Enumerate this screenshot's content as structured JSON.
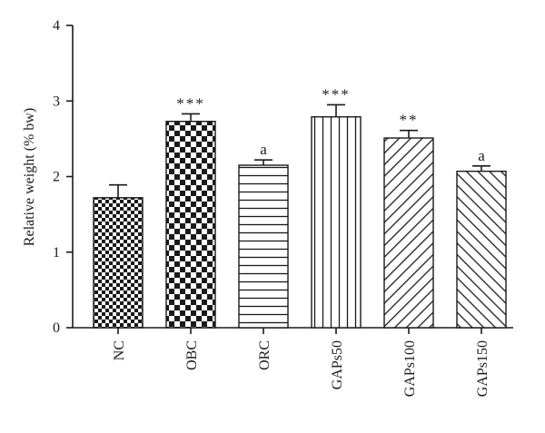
{
  "chart_data": {
    "type": "bar",
    "title": "",
    "xlabel": "",
    "ylabel": "Relative weight (% bw)",
    "ylim": [
      0,
      4
    ],
    "yticks": [
      "0",
      "1",
      "2",
      "3",
      "4"
    ],
    "categories": [
      "NC",
      "OBC",
      "ORC",
      "GAPs50",
      "GAPs100",
      "GAPs150"
    ],
    "values": [
      1.72,
      2.73,
      2.15,
      2.79,
      2.51,
      2.07
    ],
    "errors": [
      0.17,
      0.1,
      0.07,
      0.16,
      0.1,
      0.07
    ],
    "significance": [
      "",
      "***",
      "a",
      "***",
      "**",
      "a"
    ],
    "patterns": [
      "fine-checker",
      "coarse-checker",
      "horizontal-lines",
      "vertical-lines",
      "diagonal-lines",
      "diagonal-lines-reverse"
    ],
    "bar_color": "#1a1a1a",
    "background": "#ffffff",
    "grid": false,
    "legend": "none"
  }
}
